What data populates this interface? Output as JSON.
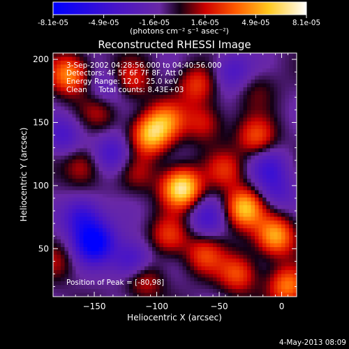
{
  "chart_data": {
    "type": "heatmap",
    "title": "Reconstructed RHESSI Image",
    "xlabel": "Heliocentric X (arcsec)",
    "ylabel": "Heliocentric Y (arcsec)",
    "xlim": [
      -183,
      12
    ],
    "ylim": [
      12,
      205
    ],
    "x_ticks": [
      -150,
      -100,
      -50,
      0
    ],
    "y_ticks": [
      50,
      100,
      150,
      200
    ],
    "colorbar": {
      "range": [
        -8.1e-05,
        8.1e-05
      ],
      "tick_labels": [
        "-8.1e-05",
        "-4.9e-05",
        "-1.6e-05",
        "1.6e-05",
        "4.9e-05",
        "8.1e-05"
      ],
      "units_label": "(photons cm⁻² s⁻¹ asec⁻²)"
    },
    "annotations": {
      "time_range": "3-Sep-2002 04:28:56.000 to 04:40:56.000",
      "detectors": "Detectors: 4F 5F 6F 7F 8F, Att 0",
      "energy": "Energy Range: 12.0 - 25.0 keV",
      "method": "Clean     Total counts: 8.43E+03",
      "peak": "Position of Peak = [-80,98]"
    },
    "sources": [
      {
        "x": -170,
        "y": 188,
        "value": 5.5e-05
      },
      {
        "x": -120,
        "y": 184,
        "value": 3e-05
      },
      {
        "x": -68,
        "y": 180,
        "value": 3.5e-05
      },
      {
        "x": -20,
        "y": 176,
        "value": 1.5e-05
      },
      {
        "x": -145,
        "y": 160,
        "value": 2.5e-05
      },
      {
        "x": -105,
        "y": 140,
        "value": 6.2e-05
      },
      {
        "x": -92,
        "y": 152,
        "value": 4e-05
      },
      {
        "x": -62,
        "y": 150,
        "value": 3e-05
      },
      {
        "x": -20,
        "y": 138,
        "value": 4e-05
      },
      {
        "x": -160,
        "y": 115,
        "value": 3e-05
      },
      {
        "x": -115,
        "y": 110,
        "value": 2e-05
      },
      {
        "x": -80,
        "y": 98,
        "value": 8.1e-05
      },
      {
        "x": -45,
        "y": 112,
        "value": 3e-05
      },
      {
        "x": -30,
        "y": 82,
        "value": 6.5e-05
      },
      {
        "x": -5,
        "y": 60,
        "value": 6e-05
      },
      {
        "x": -90,
        "y": 60,
        "value": 3.5e-05
      },
      {
        "x": -62,
        "y": 45,
        "value": 3.5e-05
      },
      {
        "x": -110,
        "y": 25,
        "value": 3e-05
      },
      {
        "x": -35,
        "y": 30,
        "value": 4e-05
      },
      {
        "x": 5,
        "y": 20,
        "value": 5e-05
      },
      {
        "x": -180,
        "y": 40,
        "value": 2e-05
      },
      {
        "x": -150,
        "y": 55,
        "value": -7.5e-05
      },
      {
        "x": -160,
        "y": 75,
        "value": -4.5e-05
      },
      {
        "x": -120,
        "y": 40,
        "value": -4e-05
      },
      {
        "x": -135,
        "y": 125,
        "value": -3.5e-05
      },
      {
        "x": -175,
        "y": 140,
        "value": -3e-05
      },
      {
        "x": -40,
        "y": 190,
        "value": -3e-05
      },
      {
        "x": -10,
        "y": 115,
        "value": -3e-05
      },
      {
        "x": -60,
        "y": 75,
        "value": -3e-05
      },
      {
        "x": -5,
        "y": 95,
        "value": -2.5e-05
      },
      {
        "x": -140,
        "y": 175,
        "value": -2.5e-05
      }
    ]
  },
  "footer": {
    "timestamp": "4-May-2013 08:09"
  }
}
